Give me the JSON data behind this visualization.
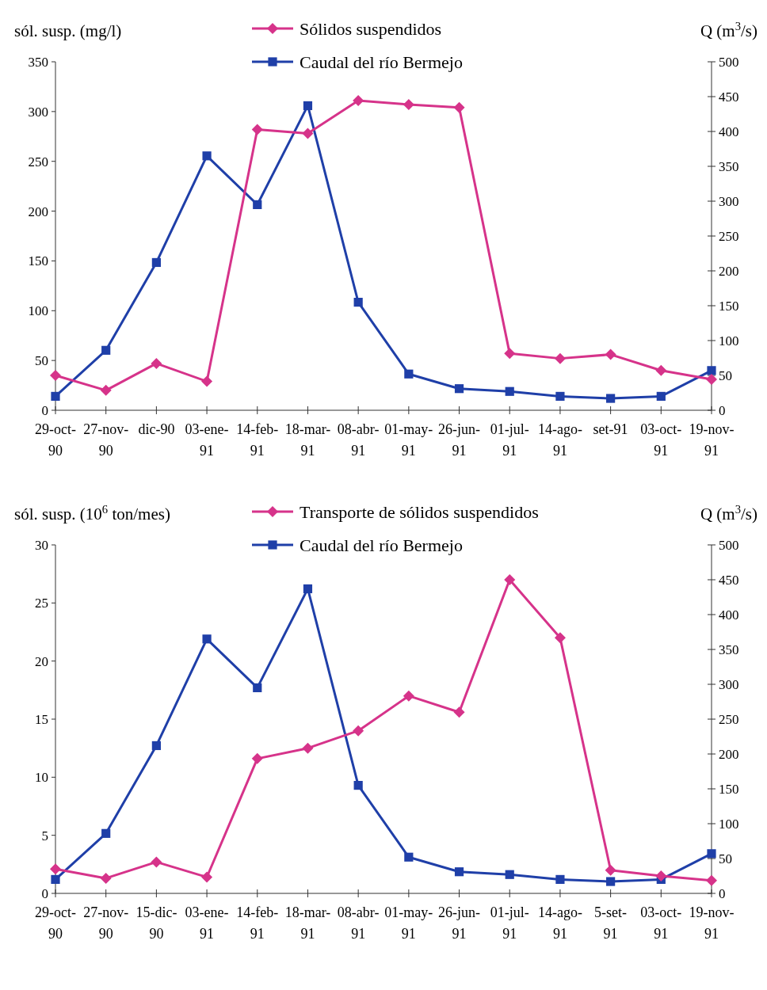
{
  "chart_data": [
    {
      "type": "line",
      "ylabel": "sól. susp. (mg/l)",
      "y2label": "Q (m$^{3}$/s)",
      "categories": [
        "29-oct-90",
        "27-nov-90",
        "dic-90",
        "03-ene-91",
        "14-feb-91",
        "18-mar-91",
        "08-abr-91",
        "01-may-91",
        "26-jun-91",
        "01-jul-91",
        "14-ago-91",
        "set-91",
        "03-oct-91",
        "19-nov-91"
      ],
      "series": [
        {
          "name": "Sólidos suspendidos",
          "color": "#d6338a",
          "marker": "diamond",
          "values": [
            35,
            20,
            47,
            29,
            282,
            278,
            311,
            307,
            304,
            57,
            52,
            56,
            40,
            31
          ]
        },
        {
          "name": "Caudal del río Bermejo",
          "color": "#1f3fa8",
          "marker": "square",
          "axis": "y2",
          "values": [
            20,
            86,
            212,
            365,
            295,
            437,
            155,
            52,
            31,
            27,
            20,
            17,
            20,
            57
          ]
        }
      ],
      "ylim": [
        0,
        350
      ],
      "yticks": [
        0,
        50,
        100,
        150,
        200,
        250,
        300,
        350
      ],
      "y2lim": [
        0,
        500
      ],
      "y2ticks": [
        0,
        50,
        100,
        150,
        200,
        250,
        300,
        350,
        400,
        450,
        500
      ],
      "legend": "top",
      "grid": false,
      "line_style": "solid"
    },
    {
      "type": "line",
      "ylabel": "sól. susp. (10$^{6}$ ton/mes)",
      "y2label": "Q (m$^{3}$/s)",
      "categories": [
        "29-oct-90",
        "27-nov-90",
        "15-dic-90",
        "03-ene-91",
        "14-feb-91",
        "18-mar-91",
        "08-abr-91",
        "01-may-91",
        "26-jun-91",
        "01-jul-91",
        "14-ago-91",
        "5-set-91",
        "03-oct-91",
        "19-nov-91"
      ],
      "series": [
        {
          "name": "Transporte de sólidos suspendidos",
          "color": "#d6338a",
          "marker": "diamond",
          "values": [
            2.1,
            1.3,
            2.7,
            1.4,
            11.6,
            12.5,
            14,
            17,
            15.6,
            27,
            22,
            2,
            1.5,
            1.1
          ]
        },
        {
          "name": "Caudal del río Bermejo",
          "color": "#1f3fa8",
          "marker": "square",
          "axis": "y2",
          "values": [
            20,
            86,
            212,
            365,
            295,
            437,
            155,
            52,
            31,
            27,
            20,
            17,
            20,
            57
          ]
        }
      ],
      "ylim": [
        0,
        30
      ],
      "yticks": [
        0,
        5,
        10,
        15,
        20,
        25,
        30
      ],
      "y2lim": [
        0,
        500
      ],
      "y2ticks": [
        0,
        50,
        100,
        150,
        200,
        250,
        300,
        350,
        400,
        450,
        500
      ],
      "legend": "top",
      "grid": false,
      "line_style": "solid"
    }
  ]
}
